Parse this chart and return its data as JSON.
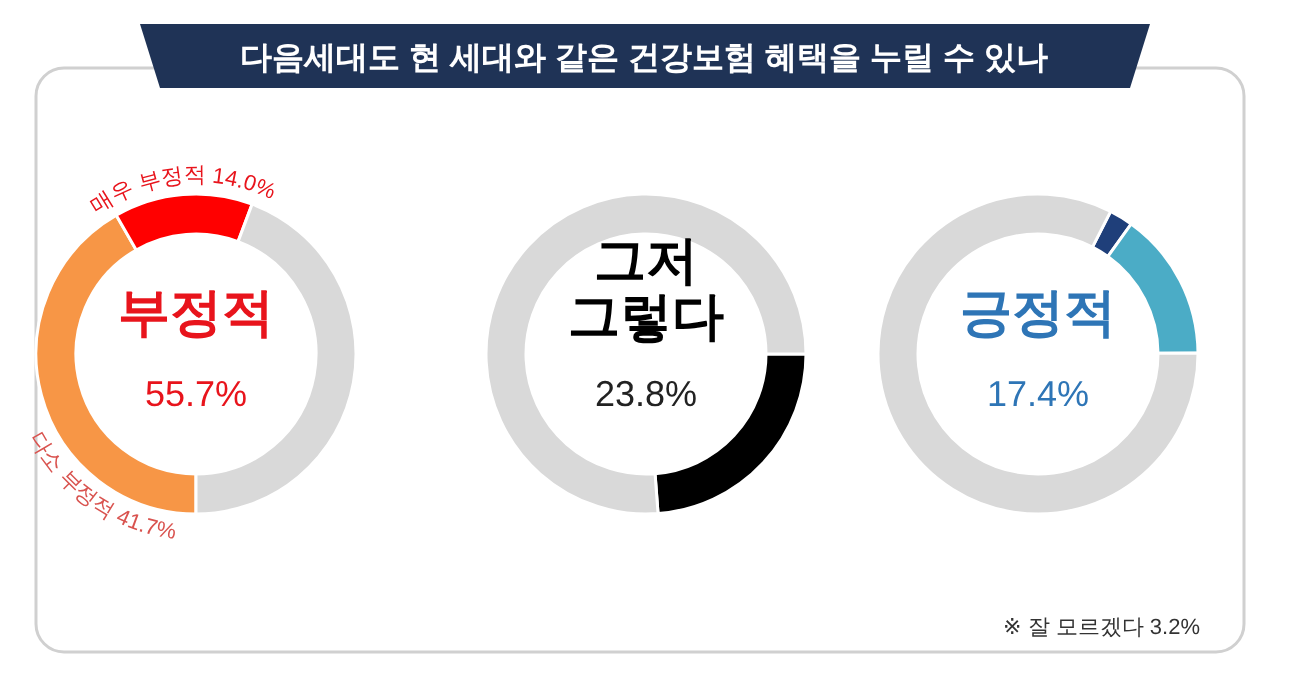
{
  "chart_data": [
    {
      "type": "donut",
      "title": "부정적",
      "subtitle": "55.7%",
      "categories": [
        "다소 부정적",
        "매우 부정적",
        null
      ],
      "values": [
        41.7,
        14.0,
        44.3
      ],
      "colors": [
        "#f79646",
        "#ff0000",
        "#d9d9d9"
      ],
      "value_labels": [
        "41.7%",
        "14.0%",
        null
      ],
      "annotations": [
        "다음세대도 현 세대와 같은 건강보험 혜택을 누릴 수 있나"
      ]
    },
    {
      "type": "donut",
      "title": "그저 그렇다",
      "subtitle": "23.8%",
      "categories": [
        null,
        null
      ],
      "values": [
        23.8,
        76.2
      ],
      "colors": [
        "#000000",
        "#d9d9d9"
      ]
    },
    {
      "type": "donut",
      "title": "긍정적",
      "subtitle": "17.4%",
      "categories": [
        null,
        null,
        null
      ],
      "values": [
        2.4,
        15.0,
        82.6
      ],
      "colors": [
        "#1f3f7a",
        "#4bacc6",
        "#d9d9d9"
      ],
      "annotations": [
        "※ 잘 모르겠다 3.2%"
      ]
    }
  ]
}
